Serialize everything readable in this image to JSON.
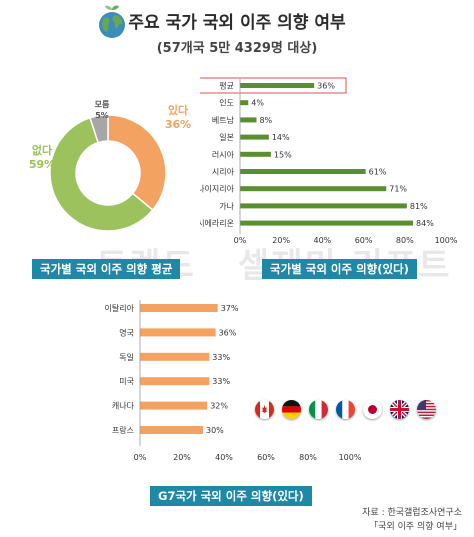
{
  "header": {
    "title": "주요 국가 국외 이주 의향 여부",
    "subtitle": "(57개국 5만 4329명 대상)"
  },
  "banners": {
    "avg": "국가별 국외 이주 의향 평균",
    "country": "국가별 국외 이주 의향(있다)",
    "g7": "G7국가 국외 이주 의향(있다)"
  },
  "watermark": {
    "left": "트렌드",
    "right": "셀제미 리포트"
  },
  "source": {
    "line1": "자료 : 한국갤럽조사연구소",
    "line2": "「국외 이주 의향 여부」"
  },
  "flags": [
    "canada-flag",
    "germany-flag",
    "italy-flag",
    "france-flag",
    "japan-flag",
    "uk-flag",
    "usa-flag"
  ],
  "colors": {
    "accent": "#1f88a7",
    "green_bar": "#5a8f2e",
    "orange_bar": "#f4a261",
    "donut_yes": "#f4a261",
    "donut_no": "#9bc25d",
    "donut_unk": "#a6a6a6"
  },
  "chart_data": [
    {
      "type": "pie",
      "title": "국가별 국외 이주 의향 평균",
      "labels": [
        "있다",
        "없다",
        "모름"
      ],
      "values": [
        36,
        59,
        5
      ],
      "value_labels": [
        "36%",
        "59%",
        "5%"
      ]
    },
    {
      "type": "bar",
      "orientation": "horizontal",
      "title": "국가별 국외 이주 의향(있다)",
      "categories": [
        "평균",
        "인도",
        "베트남",
        "일본",
        "러시아",
        "시리아",
        "나이지리아",
        "가나",
        "시에라리온"
      ],
      "values": [
        36,
        4,
        8,
        14,
        15,
        61,
        71,
        81,
        84
      ],
      "value_labels": [
        "36%",
        "4%",
        "8%",
        "14%",
        "15%",
        "61%",
        "71%",
        "81%",
        "84%"
      ],
      "xlim": [
        0,
        100
      ],
      "x_ticks": [
        "0%",
        "20%",
        "40%",
        "60%",
        "80%",
        "100%"
      ],
      "highlight": "평균"
    },
    {
      "type": "bar",
      "orientation": "horizontal",
      "title": "G7국가 국외 이주 의향(있다)",
      "categories": [
        "이탈리아",
        "영국",
        "독일",
        "미국",
        "캐나다",
        "프랑스"
      ],
      "values": [
        37,
        36,
        33,
        33,
        32,
        30
      ],
      "value_labels": [
        "37%",
        "36%",
        "33%",
        "33%",
        "32%",
        "30%"
      ],
      "xlim": [
        0,
        100
      ],
      "x_ticks": [
        "0%",
        "20%",
        "40%",
        "60%",
        "80%",
        "100%"
      ]
    }
  ]
}
